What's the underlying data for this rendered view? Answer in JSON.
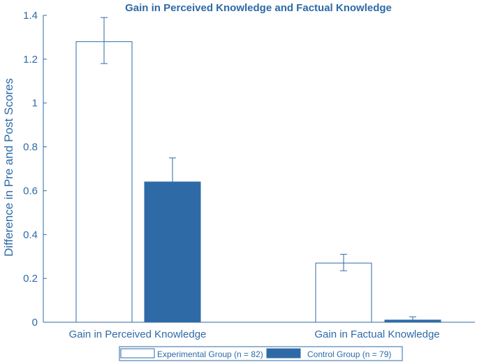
{
  "chart_data": {
    "type": "bar",
    "title": "Gain in Perceived Knowledge and Factual Knowledge",
    "xlabel": "",
    "ylabel": "Difference in Pre and Post Scores",
    "ylim": [
      0,
      1.4
    ],
    "yticks": [
      "0",
      "0.2",
      "0.4",
      "0.6",
      "0.8",
      "1",
      "1.2",
      "1.4"
    ],
    "categories": [
      "Gain in Perceived Knowledge",
      "Gain in Factual Knowledge"
    ],
    "series": [
      {
        "name": "Experimental Group (n = 82)",
        "values": [
          1.28,
          0.27
        ],
        "error_low": [
          1.18,
          0.235
        ],
        "error_high": [
          1.39,
          0.31
        ],
        "fill": "#ffffff",
        "stroke": "#2e6aa6"
      },
      {
        "name": "Control Group (n = 79)",
        "values": [
          0.64,
          0.01
        ],
        "error_low": [
          0.64,
          0.01
        ],
        "error_high": [
          0.75,
          0.025
        ],
        "fill": "#2e6aa6",
        "stroke": "#2e6aa6"
      }
    ],
    "legend_position": "bottom",
    "grid": false
  },
  "colors": {
    "accent": "#2e6aa6",
    "axis": "#2e6aa6"
  }
}
